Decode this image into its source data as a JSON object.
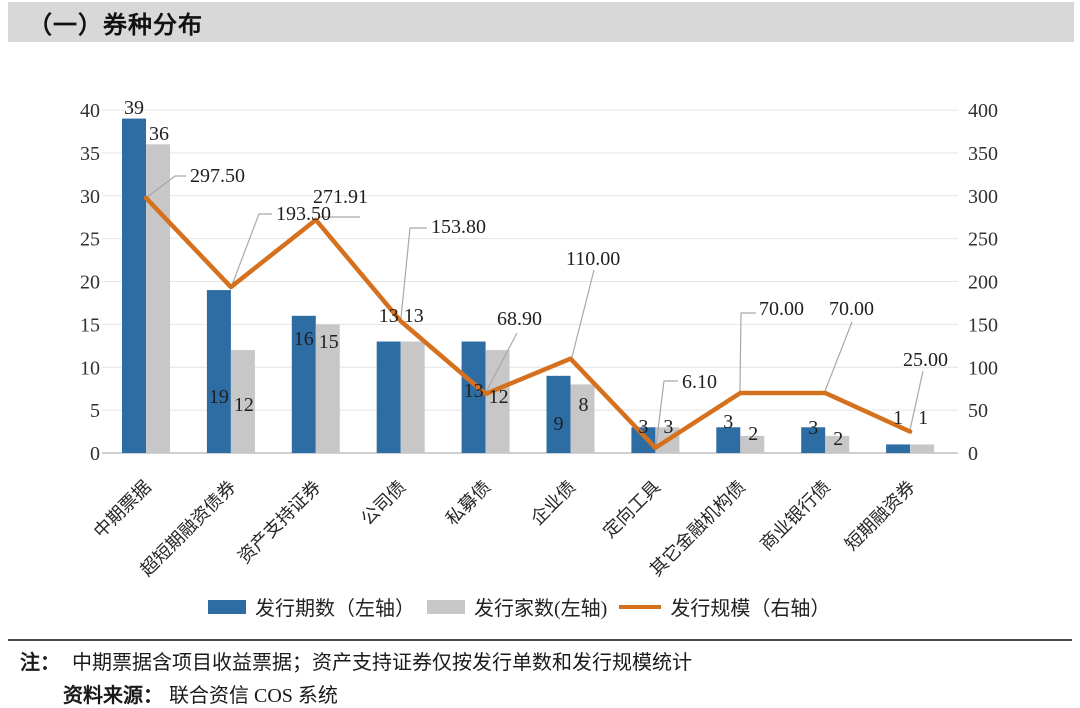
{
  "page": {
    "section_title": "（一）券种分布"
  },
  "chart_data": {
    "type": "combo-bar-line",
    "title": "",
    "categories": [
      "中期票据",
      "超短期融资债券",
      "资产支持证券",
      "公司债",
      "私募债",
      "企业债",
      "定向工具",
      "其它金融机构债",
      "商业银行债",
      "短期融资券"
    ],
    "series": [
      {
        "name": "发行期数（左轴）",
        "type": "bar",
        "axis": "left",
        "color": "#2E6DA4",
        "values": [
          39,
          19,
          16,
          13,
          13,
          9,
          3,
          3,
          3,
          1
        ]
      },
      {
        "name": "发行家数(左轴)",
        "type": "bar",
        "axis": "left",
        "color": "#C7C7C7",
        "values": [
          36,
          12,
          15,
          13,
          12,
          8,
          3,
          2,
          2,
          1
        ]
      },
      {
        "name": "发行规模（右轴）",
        "type": "line",
        "axis": "right",
        "color": "#D5711E",
        "values": [
          297.5,
          193.5,
          271.91,
          153.8,
          68.9,
          110.0,
          6.1,
          70.0,
          70.0,
          25.0
        ],
        "value_labels": [
          "297.50",
          "193.50",
          "271.91",
          "153.80",
          "68.90",
          "110.00",
          "6.10",
          "70.00",
          "70.00",
          "25.00"
        ]
      }
    ],
    "left_axis": {
      "min": 0,
      "max": 40,
      "step": 5,
      "ticks": [
        "0",
        "5",
        "10",
        "15",
        "20",
        "25",
        "30",
        "35",
        "40"
      ]
    },
    "right_axis": {
      "min": 0,
      "max": 400,
      "step": 50,
      "ticks": [
        "0",
        "50",
        "100",
        "150",
        "200",
        "250",
        "300",
        "350",
        "400"
      ]
    },
    "grid": true,
    "legend_position": "bottom"
  },
  "notes": {
    "note_label": "注：",
    "note_text": "中期票据含项目收益票据；资产支持证券仅按发行单数和发行规模统计",
    "source_label": "资料来源：",
    "source_text": "联合资信 COS 系统"
  }
}
